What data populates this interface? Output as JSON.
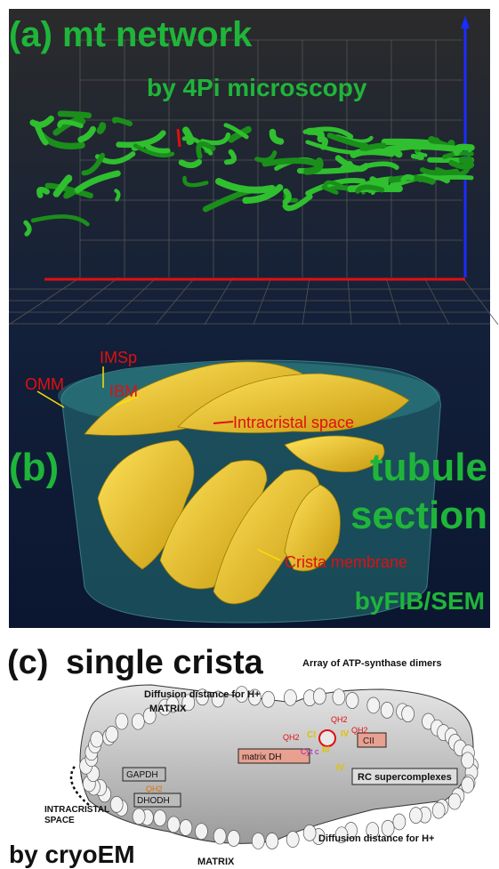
{
  "panel_a": {
    "label": "(a) mt network",
    "subtitle": "by 4Pi microscopy"
  },
  "panel_b": {
    "label": "(b)",
    "title_lines": [
      "tubule",
      "section"
    ],
    "method": "byFIB/SEM",
    "annotations": [
      "OMM",
      "IMSp",
      "IBM",
      "Intracristal space",
      "Crista membrane"
    ]
  },
  "panel_c": {
    "label": "(c)",
    "title": "single crista",
    "method": "by cryoEM",
    "top_note": "Array of ATP-synthase dimers",
    "diffusion_top": "Diffusion distance for H+",
    "matrix_top": "MATRIX",
    "diffusion_bottom": "Diffusion distance for H+",
    "matrix_bottom": "MATRIX",
    "complexes": [
      "CI",
      "QH2",
      "IV",
      "QH2",
      "CII",
      "QH2",
      "Cyt c",
      "III",
      "IV"
    ],
    "matrix_dh": "matrix DH",
    "rc": "RC supercomplexes",
    "gapdh": "GAPDH",
    "qh2_left": "QH2",
    "dhodh": "DHODH",
    "intracristal": [
      "INTRACRISTAL",
      "SPACE"
    ]
  }
}
